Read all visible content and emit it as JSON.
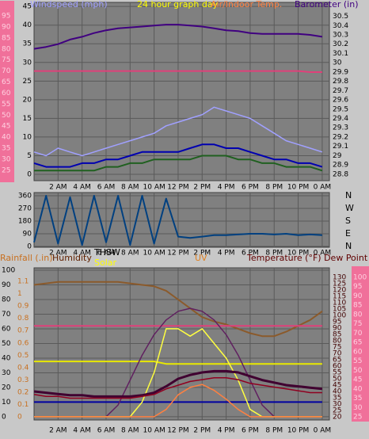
{
  "chart_data": [
    {
      "type": "line",
      "labels": [
        "Windspeed (mph)",
        "24 hour graph day",
        "Air/Indoor Temp.",
        "Barometer (in)"
      ],
      "x": [
        0,
        1,
        2,
        3,
        4,
        5,
        6,
        7,
        8,
        9,
        10,
        11,
        12,
        13,
        14,
        15,
        16,
        17,
        18,
        19,
        20,
        21,
        22,
        23,
        24
      ],
      "xlim": [
        0,
        24.6
      ],
      "xticks": [
        {
          "value": 2,
          "label": "2 AM"
        },
        {
          "value": 4,
          "label": "4 AM"
        },
        {
          "value": 6,
          "label": "6 AM"
        },
        {
          "value": 8,
          "label": "8 AM"
        },
        {
          "value": 10,
          "label": "10 AM"
        },
        {
          "value": 12,
          "label": "12 PM"
        },
        {
          "value": 14,
          "label": "2 PM"
        },
        {
          "value": 16,
          "label": "4 PM"
        },
        {
          "value": 18,
          "label": "6 PM"
        },
        {
          "value": 20,
          "label": "8 PM"
        },
        {
          "value": 22,
          "label": "10 PM"
        },
        {
          "value": 24,
          "label": "0 AM"
        }
      ],
      "ylim": [
        -1.7,
        46.1
      ],
      "yticks": [
        0,
        5,
        10,
        15,
        20,
        25,
        30,
        35,
        40,
        45
      ],
      "y2lim": [
        28.73,
        30.65
      ],
      "y2ticks": [
        28.8,
        28.9,
        29,
        29.1,
        29.2,
        29.3,
        29.4,
        29.5,
        29.6,
        29.7,
        29.8,
        29.9,
        30,
        30.1,
        30.2,
        30.3,
        30.4,
        30.5
      ],
      "y3lim": [
        20.3,
        101.1
      ],
      "y3ticks": [
        25,
        30,
        35,
        40,
        45,
        50,
        55,
        60,
        65,
        70,
        75,
        80,
        85,
        90,
        95
      ],
      "grid": true,
      "series": [
        {
          "color": "#a0a0ff",
          "axis": "y",
          "values": [
            6,
            5,
            7,
            6,
            5,
            6,
            7,
            8,
            9,
            10,
            11,
            13,
            14,
            15,
            16,
            18,
            17,
            16,
            15,
            13,
            11,
            9,
            8,
            7,
            6
          ]
        },
        {
          "color": "#0000b0",
          "axis": "y",
          "values": [
            3,
            2,
            2,
            2,
            3,
            3,
            4,
            4,
            5,
            6,
            6,
            6,
            6,
            7,
            8,
            8,
            7,
            7,
            6,
            5,
            4,
            4,
            3,
            3,
            2
          ]
        },
        {
          "color": "#206020",
          "axis": "y",
          "values": [
            1,
            1,
            1,
            1,
            1,
            1,
            2,
            2,
            3,
            3,
            4,
            4,
            4,
            4,
            5,
            5,
            5,
            4,
            4,
            3,
            3,
            2,
            2,
            2,
            1
          ]
        },
        {
          "color": "#e0407a",
          "axis": "y3",
          "values": [
            70,
            70,
            70,
            70,
            70,
            70,
            70,
            70,
            70,
            70,
            70,
            70,
            70,
            70,
            70,
            70,
            70,
            70,
            70,
            70,
            70,
            70,
            70,
            69.5,
            69.5
          ]
        },
        {
          "color": "#400080",
          "axis": "y2",
          "values": [
            30.15,
            30.17,
            30.2,
            30.25,
            30.28,
            30.32,
            30.35,
            30.37,
            30.38,
            30.39,
            30.4,
            30.41,
            30.41,
            30.4,
            30.39,
            30.37,
            30.35,
            30.34,
            30.32,
            30.31,
            30.31,
            30.31,
            30.31,
            30.3,
            30.28
          ]
        }
      ]
    },
    {
      "type": "line",
      "x": [
        0,
        1,
        2,
        3,
        4,
        5,
        6,
        7,
        8,
        9,
        10,
        11,
        12,
        13,
        14,
        15,
        16,
        17,
        18,
        19,
        20,
        21,
        22,
        23,
        24
      ],
      "xlim": [
        0,
        24.6
      ],
      "xticks": [
        {
          "value": 2,
          "label": "2 AM"
        },
        {
          "value": 4,
          "label": "4 AM"
        },
        {
          "value": 6,
          "label": "6 AM"
        },
        {
          "value": 8,
          "label": "8 AM"
        },
        {
          "value": 10,
          "label": "10 AM"
        },
        {
          "value": 12,
          "label": "12 PM"
        },
        {
          "value": 14,
          "label": "2 PM"
        },
        {
          "value": 16,
          "label": "4 PM"
        },
        {
          "value": 18,
          "label": "6 PM"
        },
        {
          "value": 20,
          "label": "8 PM"
        },
        {
          "value": 22,
          "label": "10 PM"
        },
        {
          "value": 24,
          "label": "0 AM"
        }
      ],
      "ylim": [
        -5.6,
        382.5
      ],
      "yticks": [
        0,
        90,
        180,
        270,
        360
      ],
      "y2lim": [
        -5.6,
        382.5
      ],
      "y2ticks": [
        {
          "value": 0,
          "label": "N"
        },
        {
          "value": 90,
          "label": "E"
        },
        {
          "value": 180,
          "label": "S"
        },
        {
          "value": 270,
          "label": "W"
        },
        {
          "value": 360,
          "label": "N"
        }
      ],
      "grid": true,
      "series": [
        {
          "color": "#004080",
          "axis": "y",
          "values": [
            30,
            360,
            20,
            350,
            10,
            360,
            30,
            360,
            10,
            360,
            20,
            340,
            70,
            60,
            70,
            80,
            80,
            85,
            90,
            90,
            85,
            90,
            80,
            85,
            80
          ]
        }
      ]
    },
    {
      "type": "line",
      "labels": [
        "Rainfall (.in)",
        "Humidity",
        "THSW",
        "Solar",
        "UV",
        "Temperature (°F) Dew Point (°F)"
      ],
      "x": [
        0,
        1,
        2,
        3,
        4,
        5,
        6,
        7,
        8,
        9,
        10,
        11,
        12,
        13,
        14,
        15,
        16,
        17,
        18,
        19,
        20,
        21,
        22,
        23,
        24
      ],
      "xlim": [
        0,
        24.6
      ],
      "xticks": [
        {
          "value": 2,
          "label": "2 AM"
        },
        {
          "value": 4,
          "label": "4 AM"
        },
        {
          "value": 6,
          "label": "6 AM"
        },
        {
          "value": 8,
          "label": "8 AM"
        },
        {
          "value": 10,
          "label": "10 AM"
        },
        {
          "value": 12,
          "label": "12 PM"
        },
        {
          "value": 14,
          "label": "2 PM"
        },
        {
          "value": 16,
          "label": "4 PM"
        },
        {
          "value": 18,
          "label": "6 PM"
        },
        {
          "value": 20,
          "label": "8 PM"
        },
        {
          "value": 22,
          "label": "10 PM"
        },
        {
          "value": 24,
          "label": "0 AM"
        }
      ],
      "ylim": [
        -2.2,
        101.6
      ],
      "yticks": [
        0,
        10,
        20,
        30,
        40,
        50,
        60,
        70,
        80,
        90,
        100
      ],
      "y2lim": [
        17.5,
        137.5
      ],
      "y2ticks": [
        20,
        25,
        30,
        35,
        40,
        45,
        50,
        55,
        60,
        65,
        70,
        75,
        80,
        85,
        90,
        95,
        100,
        105,
        110,
        115,
        120,
        125,
        130
      ],
      "y3lim": [
        23.3,
        105.1
      ],
      "y3ticks": [
        25,
        30,
        35,
        40,
        45,
        50,
        55,
        60,
        65,
        70,
        75,
        80,
        85,
        90,
        95,
        100
      ],
      "y4lim": [
        -0.026,
        1.21
      ],
      "y4ticks": [
        0,
        0.1,
        0.2,
        0.3,
        0.4,
        0.5,
        0.6,
        0.7,
        0.8,
        0.9,
        1,
        1.1
      ],
      "grid": true,
      "series": [
        {
          "color": "#8b5a2b",
          "axis": "y",
          "values": [
            90,
            91,
            92,
            92,
            92,
            92,
            92,
            92,
            91,
            90,
            89,
            86,
            80,
            74,
            68,
            65,
            63,
            60,
            57,
            55,
            55,
            58,
            62,
            66,
            72
          ]
        },
        {
          "color": "#e0407a",
          "axis": "y",
          "values": [
            62,
            62,
            62,
            62,
            62,
            62,
            62,
            62,
            62,
            62,
            62,
            62,
            62,
            62,
            62,
            62,
            62,
            62,
            62,
            62,
            62,
            62,
            62,
            62,
            62
          ]
        },
        {
          "color": "#e8e800",
          "axis": "y4",
          "values": [
            0.45,
            0.45,
            0.45,
            0.45,
            0.45,
            0.45,
            0.45,
            0.45,
            0.45,
            0.45,
            0.45,
            0.43,
            0.43,
            0.43,
            0.43,
            0.43,
            0.43,
            0.43,
            0.43,
            0.43,
            0.43,
            0.43,
            0.43,
            0.43,
            0.43
          ]
        },
        {
          "color": "#0000a0",
          "axis": "y",
          "values": [
            10,
            10,
            10,
            10,
            10,
            10,
            10,
            10,
            10,
            10,
            10,
            10,
            10,
            10,
            10,
            10,
            10,
            10,
            10,
            10,
            10,
            10,
            10,
            10,
            10
          ]
        },
        {
          "color": "#602060",
          "axis": "y",
          "values": [
            0,
            0,
            0,
            0,
            0,
            0,
            0,
            8,
            25,
            42,
            56,
            66,
            72,
            74,
            72,
            66,
            56,
            42,
            25,
            8,
            0,
            0,
            0,
            0,
            0
          ]
        },
        {
          "color": "#ffff40",
          "axis": "y",
          "values": [
            0,
            0,
            0,
            0,
            0,
            0,
            0,
            0,
            0,
            10,
            30,
            60,
            60,
            55,
            60,
            50,
            40,
            25,
            5,
            0,
            0,
            0,
            0,
            0,
            0
          ]
        },
        {
          "color": "#ff8040",
          "axis": "y",
          "values": [
            0,
            0,
            0,
            0,
            0,
            0,
            0,
            0,
            0,
            0,
            0,
            5,
            15,
            20,
            22,
            18,
            12,
            5,
            0,
            0,
            0,
            0,
            0,
            0,
            0
          ]
        },
        {
          "color": "#400030",
          "axis": "y2",
          "values": [
            40,
            39,
            38,
            37,
            37,
            36,
            36,
            36,
            36,
            37,
            39,
            44,
            50,
            53,
            55,
            56,
            56,
            55,
            52,
            49,
            47,
            45,
            44,
            43,
            42
          ]
        },
        {
          "color": "#900020",
          "axis": "y3",
          "values": [
            37,
            36,
            36,
            35,
            35,
            35,
            35,
            35,
            35,
            36,
            37,
            40,
            42,
            44,
            45,
            46,
            46,
            45,
            43,
            42,
            41,
            40,
            39,
            38,
            38
          ]
        }
      ]
    }
  ]
}
